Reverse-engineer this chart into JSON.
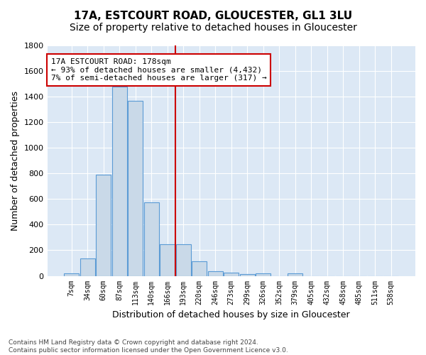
{
  "title": "17A, ESTCOURT ROAD, GLOUCESTER, GL1 3LU",
  "subtitle": "Size of property relative to detached houses in Gloucester",
  "xlabel": "Distribution of detached houses by size in Gloucester",
  "ylabel": "Number of detached properties",
  "bar_values": [
    20,
    135,
    790,
    1480,
    1370,
    575,
    245,
    245,
    115,
    35,
    25,
    15,
    20,
    0,
    20,
    0,
    0,
    0,
    0,
    0,
    0
  ],
  "all_labels": [
    "7sqm",
    "34sqm",
    "60sqm",
    "87sqm",
    "113sqm",
    "140sqm",
    "166sqm",
    "193sqm",
    "220sqm",
    "246sqm",
    "273sqm",
    "299sqm",
    "326sqm",
    "352sqm",
    "379sqm",
    "405sqm",
    "432sqm",
    "458sqm",
    "485sqm",
    "511sqm",
    "538sqm"
  ],
  "bar_color": "#c9d9e8",
  "bar_edgecolor": "#5b9bd5",
  "vline_x": 6.5,
  "vline_color": "#cc0000",
  "annotation_text": "17A ESTCOURT ROAD: 178sqm\n← 93% of detached houses are smaller (4,432)\n7% of semi-detached houses are larger (317) →",
  "annotation_box_color": "#ffffff",
  "annotation_box_edgecolor": "#cc0000",
  "ylim": [
    0,
    1800
  ],
  "yticks": [
    0,
    200,
    400,
    600,
    800,
    1000,
    1200,
    1400,
    1600,
    1800
  ],
  "bg_color": "#dce8f5",
  "footnote": "Contains HM Land Registry data © Crown copyright and database right 2024.\nContains public sector information licensed under the Open Government Licence v3.0.",
  "title_fontsize": 11,
  "subtitle_fontsize": 10
}
